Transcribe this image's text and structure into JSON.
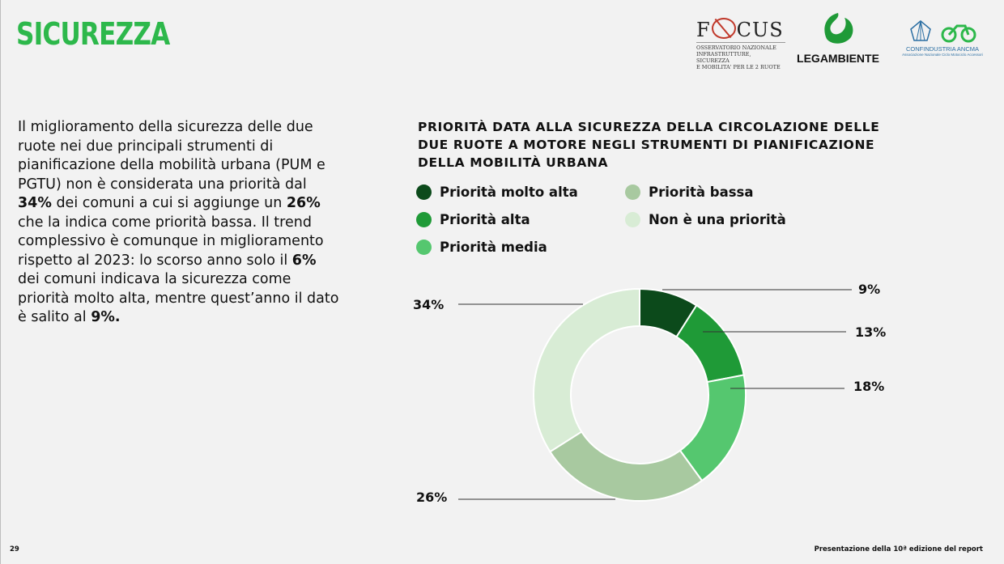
{
  "header": {
    "title": "SICUREZZA"
  },
  "logos": {
    "focus": {
      "word_pre": "F",
      "word_post": "CUS",
      "subtitle_lines": [
        "OSSERVATORIO NAZIONALE",
        "INFRASTRUTTURE, SICUREZZA",
        "E MOBILITA' PER LE 2 RUOTE"
      ]
    },
    "legambiente": {
      "name": "LEGAMBIENTE"
    },
    "confindustria": {
      "name": "CONFINDUSTRIA ANCMA",
      "sub": "Associazione Nazionale Ciclo Motociclo Accessori"
    }
  },
  "body": {
    "p1": "Il miglioramento della sicurezza delle due ruote nei due principali strumenti di pianificazione della mobilità urbana (PUM e PGTU) non è considerata una priorità dal ",
    "b1": "34%",
    "p2": " dei comuni a cui si aggiunge un ",
    "b2": "26%",
    "p3": " che la indica come priorità bassa. Il trend complessivo è comunque in miglioramento rispetto al 2023: lo scorso anno solo il ",
    "b3": "6%",
    "p4": " dei comuni indicava la sicurezza come priorità molto alta, mentre quest’anno il dato è salito al ",
    "b4": "9%."
  },
  "chart_data": {
    "type": "pie",
    "title": "PRIORITÀ DATA ALLA SICUREZZA DELLA CIRCOLAZIONE DELLE DUE RUOTE A MOTORE NEGLI STRUMENTI DI PIANIFICAZIONE DELLA MOBILITÀ URBANA",
    "categories": [
      "Priorità molto alta",
      "Priorità alta",
      "Priorità media",
      "Priorità bassa",
      "Non è una priorità"
    ],
    "values": [
      9,
      13,
      18,
      26,
      34
    ],
    "labels": [
      "9%",
      "13%",
      "18%",
      "26%",
      "34%"
    ],
    "colors": [
      "#0c4a1b",
      "#1f9a37",
      "#55c76f",
      "#a8c9a0",
      "#d8ecd5"
    ],
    "donut": true,
    "legend_placement": "top"
  },
  "footer": {
    "page": "29",
    "report": "Presentazione della 10ª edizione del report"
  }
}
